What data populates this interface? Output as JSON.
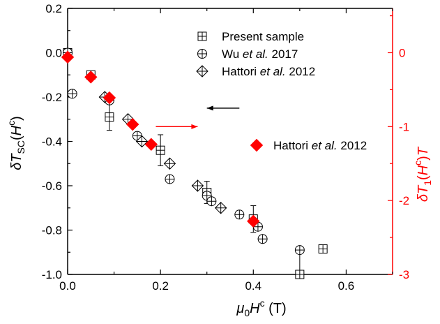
{
  "colors": {
    "black": "#000000",
    "red": "#ff0000",
    "marker_fill": "#ffffff"
  },
  "chart_data": {
    "type": "scatter",
    "xlabel": {
      "mu": "μ",
      "sub0": "0",
      "H": "H",
      "sup": "c",
      "unit": " (T)"
    },
    "ylabel_left": {
      "delta": "δ",
      "T": "T",
      "sub": "SC",
      "open": "(",
      "H": "H",
      "sup": "c",
      "close": ")"
    },
    "ylabel_right": {
      "delta": "δ",
      "T": "T",
      "sub": "1",
      "open": "(",
      "H": "H",
      "sup": "c",
      "close": ")",
      "T2": "T"
    },
    "xlim": [
      0,
      0.7
    ],
    "ylim_left": [
      -1.0,
      0.2
    ],
    "ylim_right": [
      -3,
      0.6
    ],
    "x_ticks": [
      {
        "value": 0.0,
        "label": "0.0"
      },
      {
        "value": 0.2,
        "label": "0.2"
      },
      {
        "value": 0.4,
        "label": "0.4"
      },
      {
        "value": 0.6,
        "label": "0.6"
      }
    ],
    "y_left_ticks": [
      {
        "value": 0.2,
        "label": "0.2"
      },
      {
        "value": 0.0,
        "label": "0.0"
      },
      {
        "value": -0.2,
        "label": "-0.2"
      },
      {
        "value": -0.4,
        "label": "-0.4"
      },
      {
        "value": -0.6,
        "label": "-0.6"
      },
      {
        "value": -0.8,
        "label": "-0.8"
      },
      {
        "value": -1.0,
        "label": "-1.0"
      }
    ],
    "y_right_ticks": [
      {
        "value": 0,
        "label": "0"
      },
      {
        "value": -1,
        "label": "-1"
      },
      {
        "value": -2,
        "label": "-2"
      },
      {
        "value": -3,
        "label": "-3"
      }
    ],
    "series": [
      {
        "name": "Present sample",
        "marker": "square-plus",
        "axis": "left",
        "points": [
          {
            "x": 0.0,
            "y": 0.0
          },
          {
            "x": 0.05,
            "y": -0.1
          },
          {
            "x": 0.09,
            "y": -0.29,
            "err": 0.06
          },
          {
            "x": 0.2,
            "y": -0.44,
            "err": 0.07
          },
          {
            "x": 0.3,
            "y": -0.63,
            "err": 0.05
          },
          {
            "x": 0.4,
            "y": -0.75,
            "err": 0.06
          },
          {
            "x": 0.5,
            "y": -1.0,
            "err": 0.11
          },
          {
            "x": 0.55,
            "y": -0.885
          }
        ]
      },
      {
        "name": "Wu et al. 2017",
        "name_parts": [
          "Wu ",
          "et al.",
          " 2017"
        ],
        "marker": "circle-plus",
        "axis": "left",
        "points": [
          {
            "x": 0.0,
            "y": 0.0
          },
          {
            "x": 0.01,
            "y": -0.185
          },
          {
            "x": 0.09,
            "y": -0.215
          },
          {
            "x": 0.15,
            "y": -0.375
          },
          {
            "x": 0.22,
            "y": -0.57
          },
          {
            "x": 0.3,
            "y": -0.645
          },
          {
            "x": 0.31,
            "y": -0.67
          },
          {
            "x": 0.37,
            "y": -0.73
          },
          {
            "x": 0.41,
            "y": -0.785
          },
          {
            "x": 0.42,
            "y": -0.84
          },
          {
            "x": 0.5,
            "y": -0.89
          }
        ]
      },
      {
        "name": "Hattori et al. 2012",
        "name_parts": [
          "Hattori ",
          "et al.",
          " 2012"
        ],
        "marker": "diamond-plus",
        "axis": "left",
        "points": [
          {
            "x": 0.08,
            "y": -0.2
          },
          {
            "x": 0.13,
            "y": -0.3
          },
          {
            "x": 0.16,
            "y": -0.4
          },
          {
            "x": 0.22,
            "y": -0.5
          },
          {
            "x": 0.28,
            "y": -0.6
          },
          {
            "x": 0.33,
            "y": -0.7
          }
        ]
      },
      {
        "name": "Hattori et al. 2012",
        "name_parts": [
          "Hattori ",
          "et al.",
          " 2012"
        ],
        "marker": "diamond-filled",
        "axis": "right",
        "points": [
          {
            "x": 0.0,
            "y": -0.06
          },
          {
            "x": 0.05,
            "y": -0.33
          },
          {
            "x": 0.09,
            "y": -0.61
          },
          {
            "x": 0.14,
            "y": -0.97
          },
          {
            "x": 0.18,
            "y": -1.24
          },
          {
            "x": 0.4,
            "y": -2.28
          }
        ]
      }
    ],
    "annotations": {
      "left_arrow": {
        "x_from": 0.37,
        "x_to": 0.3,
        "y_left": -0.25
      },
      "right_arrow": {
        "x_from": 0.19,
        "x_to": 0.28,
        "y_right": -1.0
      }
    },
    "grid": false
  }
}
